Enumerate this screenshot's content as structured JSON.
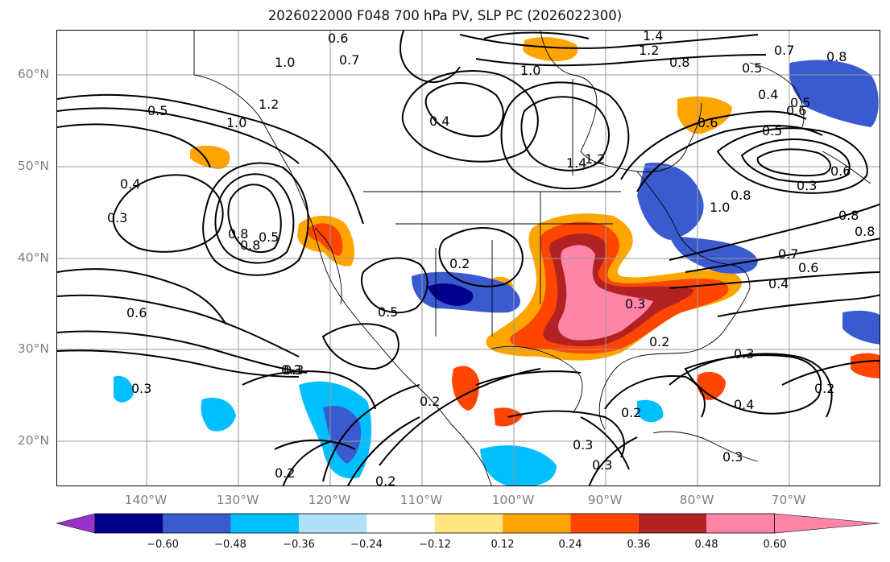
{
  "title": "2026022000 F048 700 hPa PV, SLP PC (2026022300)",
  "map": {
    "lat_labels": [
      "60°N",
      "50°N",
      "40°N",
      "30°N",
      "20°N"
    ],
    "lon_labels": [
      "140°W",
      "130°W",
      "120°W",
      "110°W",
      "100°W",
      "90°W",
      "80°W",
      "70°W"
    ],
    "contour_labels": [
      "0.6",
      "0.7",
      "1.0",
      "1.2",
      "0.5",
      "0.4",
      "0.3",
      "0.8",
      "0.8",
      "1.0",
      "0.4",
      "1.4",
      "1.2",
      "0.8",
      "0.5",
      "0.7",
      "0.4",
      "0.6",
      "0.5",
      "0.6",
      "0.8",
      "0.3",
      "0.6",
      "0.5",
      "1.0",
      "0.8",
      "1.4",
      "1.2",
      "0.2",
      "0.5",
      "0.5",
      "0.6",
      "0.3",
      "0.7",
      "0.6",
      "0.4",
      "0.3",
      "0.2",
      "0.3",
      "0.2",
      "0.3",
      "0.3",
      "0.2",
      "0.2",
      "0.2",
      "0.3",
      "0.4",
      "0.2",
      "0.3",
      "0.3",
      "0.8",
      "0.8",
      "1.0"
    ]
  },
  "colorbar": {
    "ticks": [
      "−0.60",
      "−0.48",
      "−0.36",
      "−0.24",
      "−0.12",
      "0.12",
      "0.24",
      "0.36",
      "0.48",
      "0.60"
    ],
    "colors": [
      "#9932cc",
      "#00008b",
      "#3a5bd0",
      "#00bfff",
      "#b0e0fa",
      "#ffffff",
      "#ffe680",
      "#ffa500",
      "#ff4500",
      "#b22222",
      "#ff85a8"
    ]
  }
}
